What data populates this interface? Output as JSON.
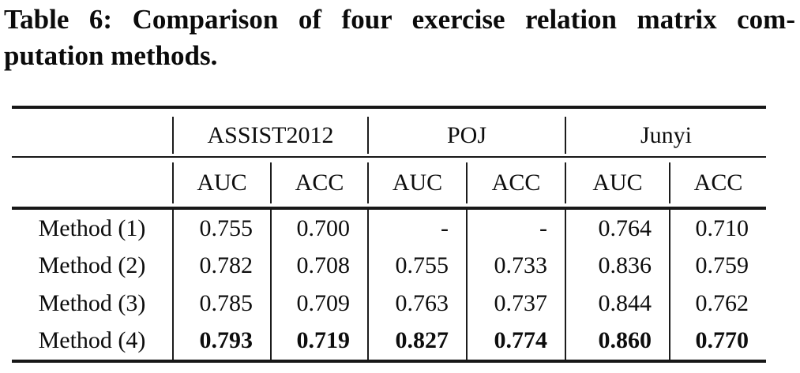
{
  "caption": {
    "line1": "Table 6: Comparison of four exercise relation matrix com-",
    "line2": "putation methods."
  },
  "table": {
    "group_headers": [
      {
        "label": "ASSIST2012"
      },
      {
        "label": "POJ"
      },
      {
        "label": "Junyi"
      }
    ],
    "metric_headers": [
      "AUC",
      "ACC",
      "AUC",
      "ACC",
      "AUC",
      "ACC"
    ],
    "rows": [
      {
        "label": "Method (1)",
        "bold": false,
        "values": [
          "0.755",
          "0.700",
          "-",
          "-",
          "0.764",
          "0.710"
        ]
      },
      {
        "label": "Method (2)",
        "bold": false,
        "values": [
          "0.782",
          "0.708",
          "0.755",
          "0.733",
          "0.836",
          "0.759"
        ]
      },
      {
        "label": "Method (3)",
        "bold": false,
        "values": [
          "0.785",
          "0.709",
          "0.763",
          "0.737",
          "0.844",
          "0.762"
        ]
      },
      {
        "label": "Method (4)",
        "bold": true,
        "values": [
          "0.793",
          "0.719",
          "0.827",
          "0.774",
          "0.860",
          "0.770"
        ]
      }
    ]
  },
  "colors": {
    "background": "#ffffff",
    "text": "#0d0d0d",
    "rule": "#171717"
  }
}
